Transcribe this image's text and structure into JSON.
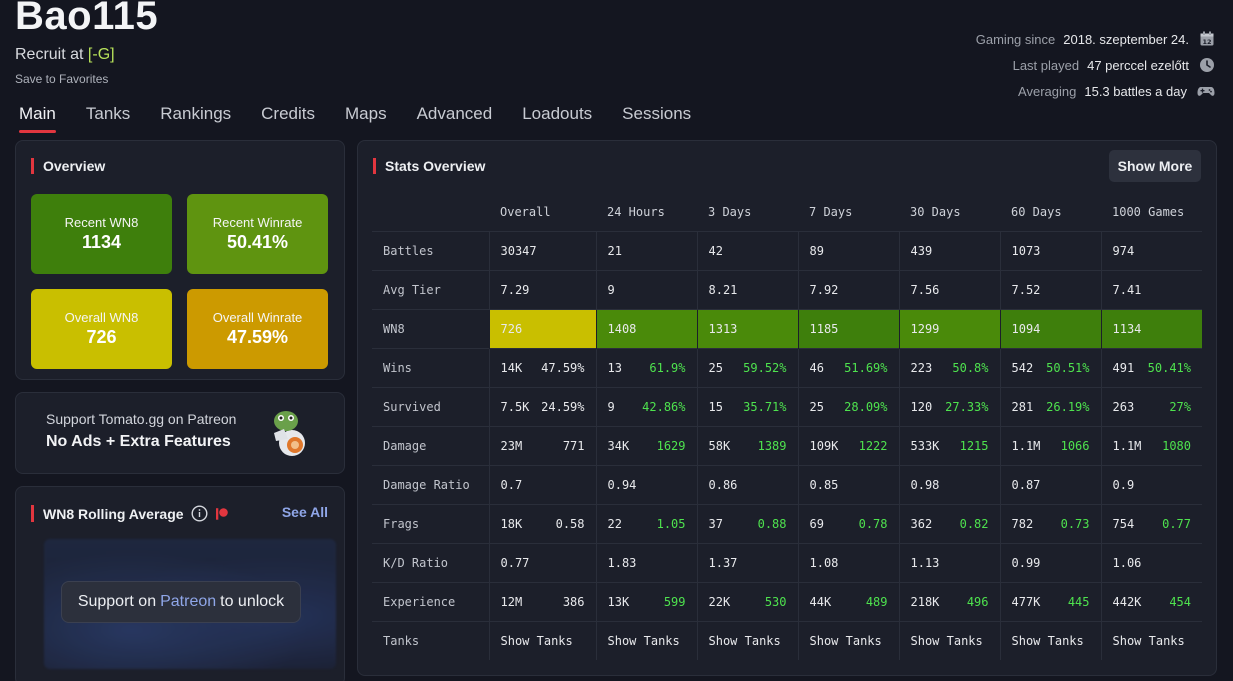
{
  "player": {
    "name": "Bao115",
    "recruit_prefix": "Recruit at",
    "clan": "[-G]",
    "save_label": "Save to Favorites"
  },
  "meta": [
    {
      "key": "Gaming since",
      "value": "2018. szeptember 24.",
      "icon": "calendar-icon"
    },
    {
      "key": "Last played",
      "value": "47 perccel ezelőtt",
      "icon": "clock-icon"
    },
    {
      "key": "Averaging",
      "value": "15.3 battles a day",
      "icon": "gamepad-icon"
    }
  ],
  "tabs": [
    "Main",
    "Tanks",
    "Rankings",
    "Credits",
    "Maps",
    "Advanced",
    "Loadouts",
    "Sessions"
  ],
  "overview": {
    "title": "Overview",
    "cards": [
      {
        "label": "Recent WN8",
        "value": "1134",
        "color": "#3e7f0c"
      },
      {
        "label": "Recent Winrate",
        "value": "50.41%",
        "color": "#5f9410"
      },
      {
        "label": "Overall WN8",
        "value": "726",
        "color": "#c9bf00"
      },
      {
        "label": "Overall Winrate",
        "value": "47.59%",
        "color": "#cc9a00"
      }
    ]
  },
  "patreon": {
    "line1": "Support Tomato.gg on Patreon",
    "line2": "No Ads + Extra Features"
  },
  "rolling": {
    "title": "WN8 Rolling Average",
    "see_all": "See All",
    "unlock_prefix": "Support on",
    "unlock_link": "Patreon",
    "unlock_suffix": "to unlock"
  },
  "stats": {
    "title": "Stats Overview",
    "show_more": "Show More",
    "columns": [
      "Overall",
      "24 Hours",
      "3 Days",
      "7 Days",
      "30 Days",
      "60 Days",
      "1000 Games"
    ],
    "rows": {
      "battles": {
        "label": "Battles",
        "values": [
          "30347",
          "21",
          "42",
          "89",
          "439",
          "1073",
          "974"
        ]
      },
      "avg_tier": {
        "label": "Avg Tier",
        "values": [
          "7.29",
          "9",
          "8.21",
          "7.92",
          "7.56",
          "7.52",
          "7.41"
        ]
      },
      "wn8": {
        "label": "WN8",
        "values": [
          "726",
          "1408",
          "1313",
          "1185",
          "1299",
          "1094",
          "1134"
        ],
        "colors": [
          "#c9bf00",
          "#4a8a0a",
          "#4a8a0a",
          "#3e7f0c",
          "#4a8a0a",
          "#3e7f0c",
          "#3e7f0c"
        ]
      },
      "wins": {
        "label": "Wins",
        "a": [
          "14K",
          "13",
          "25",
          "46",
          "223",
          "542",
          "491"
        ],
        "b": [
          "47.59%",
          "61.9%",
          "59.52%",
          "51.69%",
          "50.8%",
          "50.51%",
          "50.41%"
        ]
      },
      "survived": {
        "label": "Survived",
        "a": [
          "7.5K",
          "9",
          "15",
          "25",
          "120",
          "281",
          "263"
        ],
        "b": [
          "24.59%",
          "42.86%",
          "35.71%",
          "28.09%",
          "27.33%",
          "26.19%",
          "27%"
        ]
      },
      "damage": {
        "label": "Damage",
        "a": [
          "23M",
          "34K",
          "58K",
          "109K",
          "533K",
          "1.1M",
          "1.1M"
        ],
        "b": [
          "771",
          "1629",
          "1389",
          "1222",
          "1215",
          "1066",
          "1080"
        ]
      },
      "damage_ratio": {
        "label": "Damage Ratio",
        "values": [
          "0.7",
          "0.94",
          "0.86",
          "0.85",
          "0.98",
          "0.87",
          "0.9"
        ]
      },
      "frags": {
        "label": "Frags",
        "a": [
          "18K",
          "22",
          "37",
          "69",
          "362",
          "782",
          "754"
        ],
        "b": [
          "0.58",
          "1.05",
          "0.88",
          "0.78",
          "0.82",
          "0.73",
          "0.77"
        ]
      },
      "kd_ratio": {
        "label": "K/D Ratio",
        "values": [
          "0.77",
          "1.83",
          "1.37",
          "1.08",
          "1.13",
          "0.99",
          "1.06"
        ]
      },
      "experience": {
        "label": "Experience",
        "a": [
          "12M",
          "13K",
          "22K",
          "44K",
          "218K",
          "477K",
          "442K"
        ],
        "b": [
          "386",
          "599",
          "530",
          "489",
          "496",
          "445",
          "454"
        ]
      },
      "tanks": {
        "label": "Tanks",
        "link": "Show Tanks"
      }
    }
  }
}
